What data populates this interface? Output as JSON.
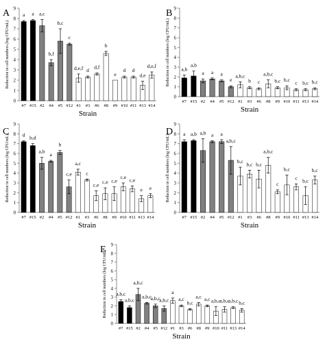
{
  "chart_data": [
    {
      "type": "bar",
      "panel_label": "A",
      "ylabel": "Reduction in cell numbers (log CFU/mL)",
      "xlabel": "Strain",
      "ylim": [
        0,
        9
      ],
      "yticks": [
        0,
        1,
        2,
        3,
        4,
        5,
        6,
        7,
        8,
        9
      ],
      "categories": [
        "#7",
        "#15",
        "#2",
        "#4",
        "#5",
        "#12",
        "#1",
        "#3",
        "#6",
        "#8",
        "#9",
        "#10",
        "#11",
        "#13",
        "#14"
      ],
      "fills": [
        "black",
        "black",
        "gray",
        "gray",
        "gray",
        "gray",
        "white",
        "white",
        "white",
        "white",
        "white",
        "white",
        "white",
        "white",
        "white"
      ],
      "values": [
        7.7,
        7.8,
        7.3,
        3.7,
        5.8,
        5.5,
        2.2,
        2.3,
        2.6,
        4.6,
        2.0,
        2.3,
        2.3,
        1.5,
        2.5
      ],
      "errors": [
        0.1,
        0.1,
        0.6,
        0.3,
        1.2,
        0.1,
        0.4,
        0.1,
        0.1,
        0.2,
        0.0,
        0.1,
        0.1,
        0.4,
        0.3
      ],
      "letters": [
        "a",
        "a",
        "a,c",
        "b,f",
        "b,c",
        "c",
        "d,e,f",
        "d",
        "d,f",
        "b",
        "e",
        "d",
        "d",
        "d,e",
        "d,e,f"
      ]
    },
    {
      "type": "bar",
      "panel_label": "B",
      "ylabel": "Reduction in cell numbers (log CFU/mL)",
      "xlabel": "Strain",
      "ylim": [
        0,
        9
      ],
      "yticks": [
        0,
        1,
        2,
        3,
        4,
        5,
        6,
        7,
        8,
        9
      ],
      "categories": [
        "#7",
        "#15",
        "#2",
        "#4",
        "#5",
        "#12",
        "#1",
        "#3",
        "#6",
        "#8",
        "#9",
        "#10",
        "#11",
        "#13",
        "#14"
      ],
      "fills": [
        "black",
        "black",
        "gray",
        "gray",
        "gray",
        "gray",
        "white",
        "white",
        "white",
        "white",
        "white",
        "white",
        "white",
        "white",
        "white"
      ],
      "values": [
        1.9,
        2.1,
        1.6,
        1.8,
        1.6,
        1.0,
        1.2,
        0.9,
        0.8,
        1.3,
        0.9,
        0.9,
        0.7,
        0.7,
        0.8
      ],
      "errors": [
        0.3,
        0.5,
        0.2,
        0.1,
        0.1,
        0.1,
        0.3,
        0.1,
        0.1,
        0.4,
        0.1,
        0.2,
        0.1,
        0.1,
        0.1
      ],
      "letters": [
        "a,b",
        "a,b",
        "a",
        "a",
        "a",
        "e",
        "a,b,c",
        "b",
        "c",
        "a,b,c",
        "b,c",
        "b,c",
        "c",
        "b,c",
        "b,c"
      ]
    },
    {
      "type": "bar",
      "panel_label": "C",
      "ylabel": "Reduction in cell numbers (log CFU/mL)",
      "xlabel": "Strain",
      "ylim": [
        0,
        9
      ],
      "yticks": [
        0,
        1,
        2,
        3,
        4,
        5,
        6,
        7,
        8,
        9
      ],
      "categories": [
        "#7",
        "#15",
        "#2",
        "#4",
        "#5",
        "#12",
        "#1",
        "#3",
        "#6",
        "#8",
        "#9",
        "#10",
        "#11",
        "#13",
        "#14"
      ],
      "fills": [
        "black",
        "black",
        "gray",
        "gray",
        "gray",
        "gray",
        "white",
        "white",
        "white",
        "white",
        "white",
        "white",
        "white",
        "white",
        "white"
      ],
      "values": [
        7.2,
        6.8,
        5.0,
        5.2,
        6.1,
        2.6,
        4.1,
        3.3,
        1.7,
        1.9,
        1.9,
        2.6,
        2.4,
        1.4,
        1.7
      ],
      "errors": [
        0.1,
        0.2,
        0.6,
        0.1,
        0.2,
        0.7,
        0.3,
        0.1,
        0.5,
        0.6,
        0.7,
        0.4,
        0.3,
        0.3,
        0.2
      ],
      "letters": [
        "d",
        "b,d",
        "a,b",
        "a",
        "b",
        "c,e",
        "a,c",
        "c",
        "c,e",
        "c,e",
        "c,e",
        "c,e",
        "c,e",
        "e",
        "e"
      ]
    },
    {
      "type": "bar",
      "panel_label": "D",
      "ylabel": "Reduction in cell numbers (log CFU/mL)",
      "xlabel": "Strain",
      "ylim": [
        0,
        9
      ],
      "yticks": [
        0,
        1,
        2,
        3,
        4,
        5,
        6,
        7,
        8,
        9
      ],
      "categories": [
        "#7",
        "#15",
        "#2",
        "#4",
        "#5",
        "#12",
        "#1",
        "#3",
        "#6",
        "#8",
        "#9",
        "#10",
        "#11",
        "#13",
        "#14"
      ],
      "fills": [
        "black",
        "black",
        "gray",
        "gray",
        "gray",
        "gray",
        "white",
        "white",
        "white",
        "white",
        "white",
        "white",
        "white",
        "white",
        "white"
      ],
      "values": [
        7.2,
        7.3,
        6.3,
        7.2,
        7.2,
        5.3,
        3.7,
        3.9,
        3.4,
        4.8,
        2.1,
        2.8,
        2.6,
        1.7,
        3.3
      ],
      "errors": [
        0.2,
        0.1,
        1.2,
        0.1,
        0.2,
        1.4,
        0.9,
        0.4,
        0.9,
        0.8,
        0.2,
        1.0,
        0.3,
        0.9,
        0.4
      ],
      "letters": [
        "a",
        "a,b",
        "a,b",
        "a",
        "a",
        "a,b,c",
        "b,c",
        "b,c",
        "b,c",
        "a,b,c",
        "c",
        "b,c",
        "c",
        "b,c",
        "b,c"
      ]
    },
    {
      "type": "bar",
      "panel_label": "E",
      "ylabel": "Reduction in cell numbers (log CFU/mL)",
      "xlabel": "Strain",
      "ylim": [
        0,
        9
      ],
      "yticks": [
        0,
        1,
        2,
        3,
        4,
        5,
        6,
        7,
        8,
        9
      ],
      "categories": [
        "#7",
        "#15",
        "#2",
        "#4",
        "#5",
        "#12",
        "#1",
        "#3",
        "#6",
        "#8",
        "#9",
        "#10",
        "#11",
        "#13",
        "#14"
      ],
      "fills": [
        "black",
        "black",
        "gray",
        "gray",
        "gray",
        "gray",
        "white",
        "white",
        "white",
        "white",
        "white",
        "white",
        "white",
        "white",
        "white"
      ],
      "values": [
        2.5,
        1.8,
        3.3,
        2.3,
        2.0,
        1.7,
        2.6,
        2.0,
        1.6,
        2.2,
        2.0,
        1.4,
        1.6,
        1.8,
        1.5
      ],
      "errors": [
        0.2,
        0.2,
        0.7,
        0.1,
        0.2,
        0.3,
        0.3,
        0.1,
        0.1,
        0.2,
        0.1,
        0.5,
        0.3,
        0.1,
        0.2
      ],
      "letters": [
        "a,b,c",
        "a,b,c",
        "a,b,c",
        "a,b,c",
        "a,b,c",
        "a,b,c",
        "a",
        "a,c",
        "b,c",
        "a,c",
        "a,c",
        "a,b,c",
        "a,b,c",
        "a,b,c",
        "b,c"
      ]
    }
  ],
  "colors": {
    "black": "#000000",
    "gray": "#808080",
    "white": "#ffffff",
    "axis": "#8c8c8c"
  }
}
